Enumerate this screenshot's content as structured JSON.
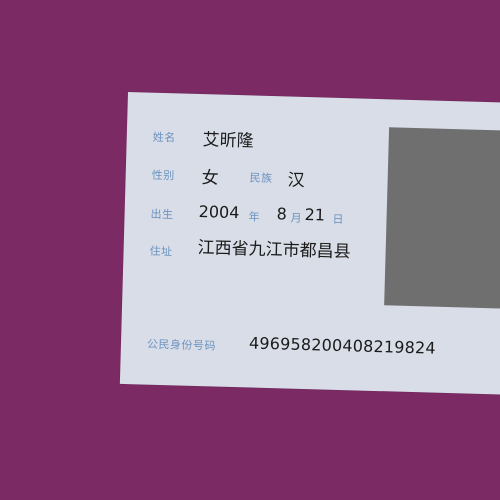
{
  "card": {
    "name_label": "姓名",
    "name": "艾昕隆",
    "sex_label": "性别",
    "sex": "女",
    "ethnicity_label": "民族",
    "ethnicity": "汉",
    "birth_label": "出生",
    "birth_year": "2004",
    "year_unit": "年",
    "birth_month": "8",
    "month_unit": "月",
    "birth_day": "21",
    "day_unit": "日",
    "address_label": "住址",
    "address": "江西省九江市都昌县",
    "id_label": "公民身份号码",
    "id_number": "496958200408219824",
    "photo_color": "#6f6f6f",
    "card_color": "#d9dde7",
    "background_color": "#7b2a64"
  }
}
